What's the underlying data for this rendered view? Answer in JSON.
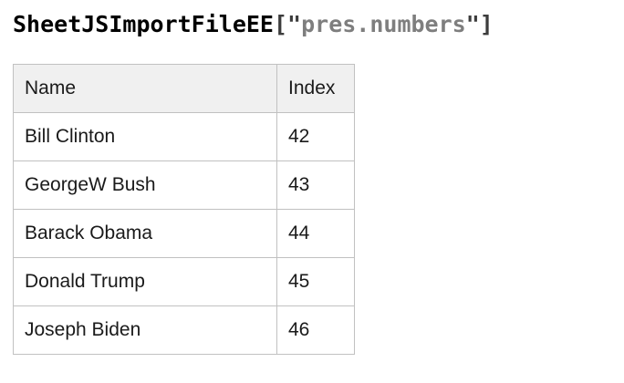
{
  "title": {
    "object_name": "SheetJSImportFileEE",
    "punct_open": "[\"",
    "string_value": "pres.numbers",
    "punct_close": "\"]"
  },
  "table": {
    "columns": [
      "Name",
      "Index"
    ],
    "rows": [
      {
        "name": "Bill Clinton",
        "index": "42"
      },
      {
        "name": "GeorgeW Bush",
        "index": "43"
      },
      {
        "name": "Barack Obama",
        "index": "44"
      },
      {
        "name": "Donald Trump",
        "index": "45"
      },
      {
        "name": "Joseph Biden",
        "index": "46"
      }
    ]
  },
  "colors": {
    "background": "#ffffff",
    "title_object": "#000000",
    "title_punctuation": "#3c3c3c",
    "title_string": "#7e7e7e",
    "table_border": "#c1c1c1",
    "header_background": "#f0f0f0",
    "cell_text": "#1a1a1a"
  }
}
